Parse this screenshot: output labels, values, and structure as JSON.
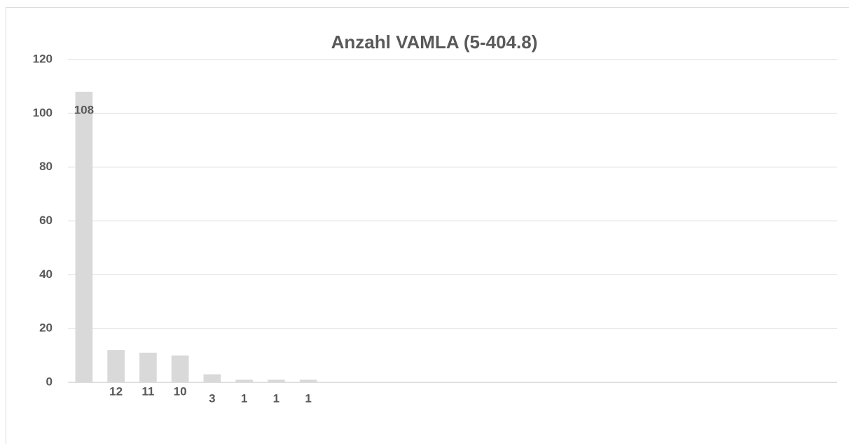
{
  "chart_data": {
    "type": "bar",
    "title": "Anzahl VAMLA (5-404.8)",
    "categories": [
      null,
      null,
      null,
      null,
      null,
      null,
      null,
      null,
      null,
      null,
      null,
      null,
      null,
      null,
      null,
      null,
      null,
      null,
      null,
      null,
      null,
      null,
      null,
      null
    ],
    "values": [
      108,
      12,
      11,
      10,
      3,
      1,
      1,
      1,
      null,
      null,
      null,
      null,
      null,
      null,
      null,
      null,
      null,
      null,
      null,
      null,
      null,
      null,
      null,
      null
    ],
    "color": "#d9d9d9",
    "ylim": [
      0,
      120
    ],
    "yticks": [
      0,
      20,
      40,
      60,
      80,
      100,
      120
    ],
    "grid": true
  }
}
